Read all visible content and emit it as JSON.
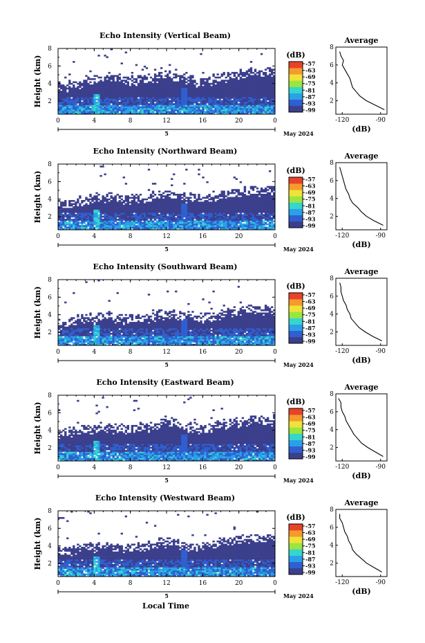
{
  "figure": {
    "x_axis_title": "Local Time",
    "month_label": "May 2024",
    "day_marker": "5",
    "colorbar_unit": "(dB)",
    "avg_xlabel": "(dB)"
  },
  "chart_data": [
    {
      "type": "heatmap",
      "title": "Echo Intensity (Vertical Beam)",
      "ylabel": "Height (km)",
      "x_ticks": [
        "0",
        "4",
        "8",
        "12",
        "16",
        "20",
        "0"
      ],
      "xlim": [
        0,
        24
      ],
      "y_ticks": [
        "2",
        "4",
        "6",
        "8"
      ],
      "ylim": [
        0.5,
        8
      ],
      "colorbar_ticks": [
        "-57",
        "-63",
        "-69",
        "-75",
        "-81",
        "-87",
        "-93",
        "-99"
      ],
      "colormap": [
        "#3b3f8c",
        "#2f5fd0",
        "#2aa0e8",
        "#35d6cc",
        "#9be53f",
        "#f0e23a",
        "#f59a2c",
        "#e8432a"
      ],
      "echo_top_km": [
        3.7,
        3.9,
        4.1,
        4.4,
        4.6,
        4.7,
        4.6,
        4.5,
        4.5,
        4.6,
        4.7,
        4.9,
        5.0,
        4.8,
        4.4,
        4.2,
        4.4,
        4.6,
        4.8,
        5.0,
        5.2,
        5.3,
        5.3,
        5.4
      ],
      "average": {
        "title": "Average",
        "x_ticks": [
          "-120",
          "-90"
        ],
        "xlim": [
          -125,
          -85
        ],
        "y_ticks": [
          "2",
          "4",
          "6",
          "8"
        ],
        "ylim": [
          0.5,
          8
        ],
        "height_km": [
          1.0,
          1.5,
          2.0,
          2.5,
          3.0,
          3.5,
          4.0,
          4.5,
          5.0,
          5.5,
          6.0,
          6.5,
          7.0,
          7.5
        ],
        "intensity_db": [
          -87,
          -94,
          -101,
          -106,
          -109,
          -112,
          -113,
          -114,
          -116,
          -118,
          -120,
          -119,
          -121,
          -122
        ]
      }
    },
    {
      "type": "heatmap",
      "title": "Echo Intensity (Northward Beam)",
      "ylabel": "Height (km)",
      "x_ticks": [
        "0",
        "4",
        "8",
        "12",
        "16",
        "20",
        "0"
      ],
      "xlim": [
        0,
        24
      ],
      "y_ticks": [
        "2",
        "4",
        "6",
        "8"
      ],
      "ylim": [
        0.5,
        8
      ],
      "colorbar_ticks": [
        "-57",
        "-63",
        "-69",
        "-75",
        "-81",
        "-87",
        "-93",
        "-99"
      ],
      "colormap": [
        "#3b3f8c",
        "#2f5fd0",
        "#2aa0e8",
        "#35d6cc",
        "#9be53f",
        "#f0e23a",
        "#f59a2c",
        "#e8432a"
      ],
      "echo_top_km": [
        3.4,
        3.6,
        3.8,
        4.0,
        4.1,
        4.2,
        4.1,
        4.0,
        4.0,
        4.1,
        4.3,
        4.5,
        4.6,
        4.4,
        4.1,
        4.0,
        4.2,
        4.4,
        4.6,
        4.8,
        4.9,
        5.0,
        5.0,
        5.1
      ],
      "average": {
        "title": "Average",
        "x_ticks": [
          "-120",
          "-90"
        ],
        "xlim": [
          -125,
          -85
        ],
        "y_ticks": [
          "2",
          "4",
          "6",
          "8"
        ],
        "ylim": [
          0.5,
          8
        ],
        "height_km": [
          1.0,
          1.5,
          2.0,
          2.5,
          3.0,
          3.5,
          4.0,
          4.5,
          5.0,
          5.5,
          6.0,
          6.5,
          7.0,
          7.5
        ],
        "intensity_db": [
          -88,
          -95,
          -101,
          -105,
          -108,
          -112,
          -114,
          -115,
          -117,
          -118,
          -119,
          -120,
          -121,
          -122
        ]
      }
    },
    {
      "type": "heatmap",
      "title": "Echo Intensity (Southward Beam)",
      "ylabel": "Height (km)",
      "x_ticks": [
        "0",
        "4",
        "8",
        "12",
        "16",
        "20",
        "0"
      ],
      "xlim": [
        0,
        24
      ],
      "y_ticks": [
        "2",
        "4",
        "6",
        "8"
      ],
      "ylim": [
        0.5,
        8
      ],
      "colorbar_ticks": [
        "-57",
        "-63",
        "-69",
        "-75",
        "-81",
        "-87",
        "-93",
        "-99"
      ],
      "colormap": [
        "#3b3f8c",
        "#2f5fd0",
        "#2aa0e8",
        "#35d6cc",
        "#9be53f",
        "#f0e23a",
        "#f59a2c",
        "#e8432a"
      ],
      "echo_top_km": [
        3.0,
        3.2,
        3.4,
        3.6,
        3.7,
        3.8,
        3.7,
        3.6,
        3.6,
        3.7,
        3.9,
        4.0,
        4.1,
        4.0,
        3.8,
        3.7,
        3.8,
        4.0,
        4.2,
        4.4,
        4.5,
        4.6,
        4.6,
        4.7
      ],
      "average": {
        "title": "Average",
        "x_ticks": [
          "-120",
          "-90"
        ],
        "xlim": [
          -125,
          -85
        ],
        "y_ticks": [
          "2",
          "4",
          "6",
          "8"
        ],
        "ylim": [
          0.5,
          8
        ],
        "height_km": [
          1.0,
          1.5,
          2.0,
          2.5,
          3.0,
          3.5,
          4.0,
          4.5,
          5.0,
          5.5,
          6.0,
          6.5,
          7.0,
          7.5
        ],
        "intensity_db": [
          -89,
          -96,
          -102,
          -107,
          -110,
          -113,
          -114,
          -116,
          -117,
          -119,
          -120,
          -121,
          -121,
          -122
        ]
      }
    },
    {
      "type": "heatmap",
      "title": "Echo Intensity (Eastward Beam)",
      "ylabel": "Height (km)",
      "x_ticks": [
        "0",
        "4",
        "8",
        "12",
        "16",
        "20",
        "0"
      ],
      "xlim": [
        0,
        24
      ],
      "y_ticks": [
        "2",
        "4",
        "6",
        "8"
      ],
      "ylim": [
        0.5,
        8
      ],
      "colorbar_ticks": [
        "-57",
        "-63",
        "-69",
        "-75",
        "-81",
        "-87",
        "-93",
        "-99"
      ],
      "colormap": [
        "#3b3f8c",
        "#2f5fd0",
        "#2aa0e8",
        "#35d6cc",
        "#9be53f",
        "#f0e23a",
        "#f59a2c",
        "#e8432a"
      ],
      "echo_top_km": [
        3.6,
        3.8,
        4.0,
        4.2,
        4.3,
        4.4,
        4.3,
        4.2,
        4.2,
        4.3,
        4.5,
        4.7,
        4.8,
        4.6,
        4.3,
        4.1,
        4.3,
        4.5,
        4.7,
        4.9,
        5.0,
        5.1,
        5.1,
        5.2
      ],
      "average": {
        "title": "Average",
        "x_ticks": [
          "-120",
          "-90"
        ],
        "xlim": [
          -125,
          -85
        ],
        "y_ticks": [
          "2",
          "4",
          "6",
          "8"
        ],
        "ylim": [
          0.5,
          8
        ],
        "height_km": [
          1.0,
          1.5,
          2.0,
          2.5,
          3.0,
          3.5,
          4.0,
          4.5,
          5.0,
          5.5,
          6.0,
          6.5,
          7.0,
          7.5
        ],
        "intensity_db": [
          -88,
          -94,
          -100,
          -105,
          -108,
          -111,
          -113,
          -115,
          -117,
          -118,
          -120,
          -121,
          -121,
          -123
        ]
      }
    },
    {
      "type": "heatmap",
      "title": "Echo Intensity (Westward Beam)",
      "ylabel": "Height (km)",
      "x_ticks": [
        "0",
        "4",
        "8",
        "12",
        "16",
        "20",
        "0"
      ],
      "xlim": [
        0,
        24
      ],
      "y_ticks": [
        "2",
        "4",
        "6",
        "8"
      ],
      "ylim": [
        0.5,
        8
      ],
      "colorbar_ticks": [
        "-57",
        "-63",
        "-69",
        "-75",
        "-81",
        "-87",
        "-93",
        "-99"
      ],
      "colormap": [
        "#3b3f8c",
        "#2f5fd0",
        "#2aa0e8",
        "#35d6cc",
        "#9be53f",
        "#f0e23a",
        "#f59a2c",
        "#e8432a"
      ],
      "echo_top_km": [
        3.3,
        3.5,
        3.7,
        3.9,
        4.0,
        4.1,
        4.0,
        3.9,
        3.9,
        4.0,
        4.2,
        4.4,
        4.5,
        4.3,
        4.0,
        3.9,
        4.1,
        4.3,
        4.5,
        4.7,
        4.8,
        4.9,
        4.9,
        5.0
      ],
      "average": {
        "title": "Average",
        "x_ticks": [
          "-120",
          "-90"
        ],
        "xlim": [
          -125,
          -85
        ],
        "y_ticks": [
          "2",
          "4",
          "6",
          "8"
        ],
        "ylim": [
          0.5,
          8
        ],
        "height_km": [
          1.0,
          1.5,
          2.0,
          2.5,
          3.0,
          3.5,
          4.0,
          4.5,
          5.0,
          5.5,
          6.0,
          6.5,
          7.0,
          7.5
        ],
        "intensity_db": [
          -89,
          -95,
          -101,
          -105,
          -109,
          -112,
          -113,
          -115,
          -116,
          -118,
          -119,
          -120,
          -122,
          -122
        ]
      }
    }
  ]
}
